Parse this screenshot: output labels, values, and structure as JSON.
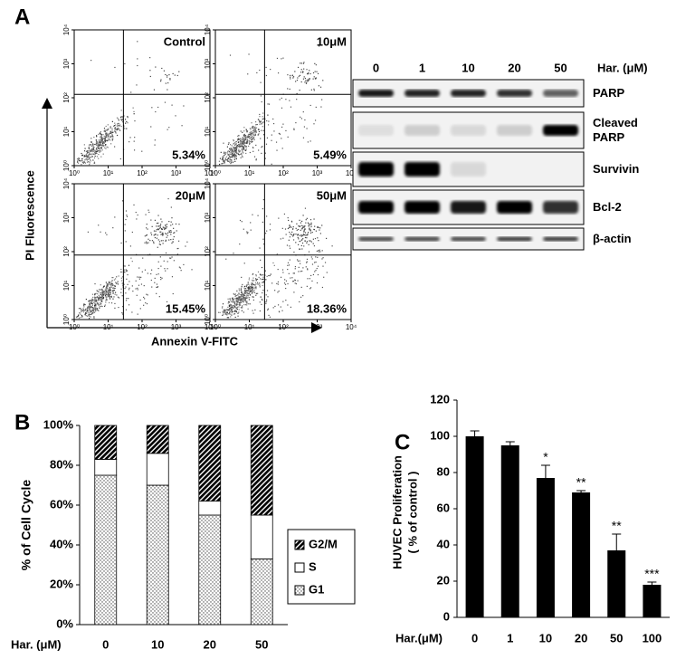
{
  "panel_labels": [
    "A",
    "B",
    "C"
  ],
  "chart_data": [
    {
      "type": "flow",
      "xlabel": "Annexin V-FITC",
      "ylabel": "PI Fluorescence",
      "log_scale": true,
      "xlim": [
        1,
        10000
      ],
      "ylim": [
        1,
        10000
      ],
      "xticks": [
        {
          "value": 1,
          "label": "10⁰"
        },
        {
          "value": 10,
          "label": "10¹"
        },
        {
          "value": 100,
          "label": "10²"
        },
        {
          "value": 1000,
          "label": "10³"
        },
        {
          "value": 10000,
          "label": "10⁴"
        }
      ],
      "yticks": [
        {
          "value": 1,
          "label": "10⁰"
        },
        {
          "value": 10,
          "label": "10¹"
        },
        {
          "value": 100,
          "label": "10²"
        },
        {
          "value": 1000,
          "label": "10³"
        },
        {
          "value": 10000,
          "label": "10⁴"
        }
      ],
      "panels": [
        {
          "title": "Control",
          "percent": "5.34%"
        },
        {
          "title": "10μM",
          "percent": "5.49%"
        },
        {
          "title": "20μM",
          "percent": "15.45%"
        },
        {
          "title": "50μM",
          "percent": "18.36%"
        }
      ]
    },
    {
      "type": "blot",
      "lane_title": "Har. (μM)",
      "lanes": [
        "0",
        "1",
        "10",
        "20",
        "50"
      ],
      "rows": [
        "PARP",
        "Cleaved PARP",
        "Survivin",
        "Bcl-2",
        "β-actin"
      ]
    },
    {
      "type": "stacked_bar",
      "ylabel": "% of Cell Cycle",
      "xlabel": "Har. (μM)",
      "categories": [
        "0",
        "10",
        "20",
        "50"
      ],
      "series": [
        {
          "name": "G1",
          "pattern": "dots",
          "color": "#000000",
          "values": [
            75,
            70,
            55,
            33
          ]
        },
        {
          "name": "S",
          "pattern": "none",
          "color": "#000000",
          "values": [
            8,
            16,
            7,
            22
          ]
        },
        {
          "name": "G2/M",
          "pattern": "hatch",
          "color": "#000000",
          "values": [
            17,
            14,
            38,
            45
          ]
        }
      ],
      "ylim": [
        0,
        100
      ],
      "yticks": [
        {
          "value": 0,
          "label": "0%"
        },
        {
          "value": 20,
          "label": "20%"
        },
        {
          "value": 40,
          "label": "40%"
        },
        {
          "value": 60,
          "label": "60%"
        },
        {
          "value": 80,
          "label": "80%"
        },
        {
          "value": 100,
          "label": "100%"
        }
      ]
    },
    {
      "type": "bar_error",
      "ylabel": [
        "HUVEC  Proliferation",
        "( % of control  )"
      ],
      "xlabel": "Har.(μM)",
      "categories": [
        "0",
        "1",
        "10",
        "20",
        "50",
        "100"
      ],
      "values": [
        100,
        95,
        77,
        69,
        37,
        18
      ],
      "errors": [
        3,
        2,
        7,
        1,
        9,
        1.5
      ],
      "annotations": [
        null,
        null,
        "*",
        "**",
        "**",
        "***"
      ],
      "color": "#000000",
      "ylim": [
        0,
        120
      ],
      "yticks": [
        0,
        20,
        40,
        60,
        80,
        100,
        120
      ]
    }
  ]
}
